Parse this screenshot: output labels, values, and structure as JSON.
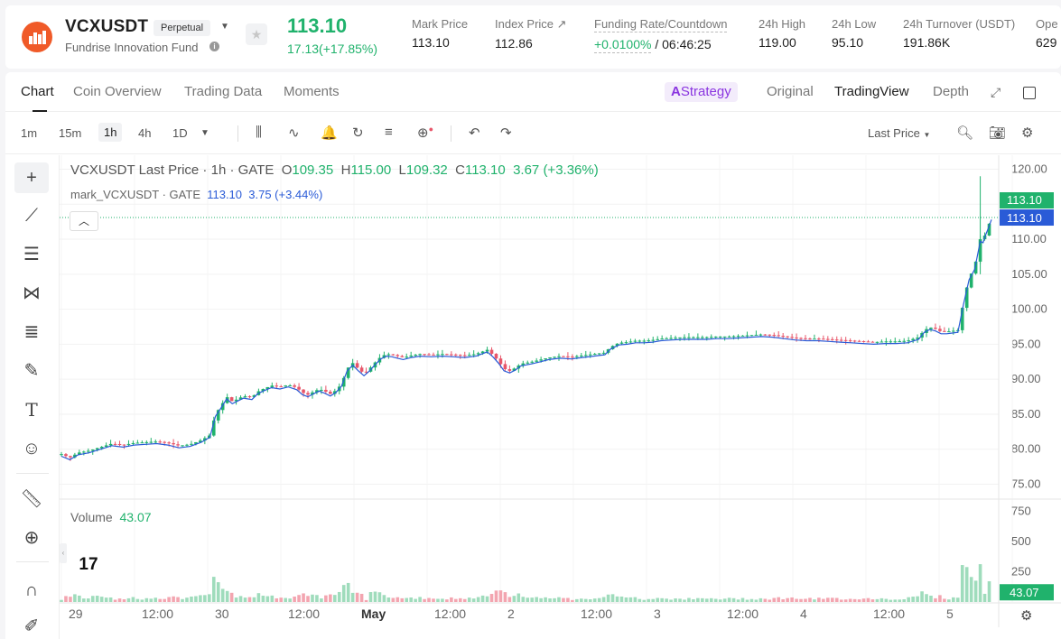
{
  "header": {
    "pair": "VCXUSDT",
    "contract_type": "Perpetual",
    "fund_name": "Fundrise Innovation Fund",
    "last_price": "113.10",
    "change": "17.13(+17.85%)",
    "stats": [
      {
        "label": "Mark Price",
        "value": "113.10"
      },
      {
        "label": "Index Price ↗",
        "value": "112.86"
      },
      {
        "label": "Funding Rate/Countdown",
        "value_green": "+0.0100%",
        "value": " / 06:46:25"
      },
      {
        "label": "24h High",
        "value": "119.00"
      },
      {
        "label": "24h Low",
        "value": "95.10"
      },
      {
        "label": "24h Turnover (USDT)",
        "value": "191.86K"
      },
      {
        "label": "Ope",
        "value": "629"
      }
    ],
    "colors": {
      "up": "#20b26c",
      "down": "#e8566a",
      "brand": "#f05a28"
    }
  },
  "tabs": [
    "Chart",
    "Coin Overview",
    "Trading Data",
    "Moments"
  ],
  "strategy_label": "Strategy",
  "views": [
    "Original",
    "TradingView",
    "Depth"
  ],
  "intervals": [
    "1m",
    "15m",
    "1h",
    "4h",
    "1D"
  ],
  "selected_interval": "1h",
  "price_source": "Last Price",
  "legend": {
    "title": "VCXUSDT Last Price · 1h · GATE",
    "o_label": "O",
    "o": "109.35",
    "h_label": "H",
    "h": "115.00",
    "l_label": "L",
    "l": "109.32",
    "c_label": "C",
    "c": "113.10",
    "chg": "3.67 (+3.36%)",
    "mark_title": "mark_VCXUSDT · GATE",
    "mark_value": "113.10",
    "mark_chg": "3.75 (+3.44%)"
  },
  "volume_legend": {
    "label": "Volume",
    "value": "43.07"
  },
  "chart_data": {
    "type": "candlestick",
    "price_axis": {
      "ticks": [
        "120.00",
        "115.00",
        "110.00",
        "105.00",
        "100.00",
        "95.00",
        "90.00",
        "85.00",
        "80.00",
        "75.00"
      ],
      "min": 73,
      "max": 122
    },
    "volume_axis": {
      "ticks": [
        "750",
        "500",
        "250"
      ],
      "max": 800
    },
    "time_labels": [
      "29",
      "12:00",
      "30",
      "12:00",
      "May",
      "12:00",
      "2",
      "12:00",
      "3",
      "12:00",
      "4",
      "12:00",
      "5"
    ],
    "last_price_tag": "113.10",
    "mark_price_tag": "113.10",
    "volume_tag": "43.07",
    "price_path": [
      [
        0,
        79.3
      ],
      [
        6,
        78.8
      ],
      [
        12,
        79.5
      ],
      [
        20,
        79.8
      ],
      [
        28,
        80.3
      ],
      [
        36,
        80.8
      ],
      [
        44,
        80.6
      ],
      [
        52,
        80.9
      ],
      [
        60,
        81
      ],
      [
        68,
        81.1
      ],
      [
        76,
        80.9
      ],
      [
        84,
        80.5
      ],
      [
        92,
        80.7
      ],
      [
        100,
        81.3
      ],
      [
        106,
        82
      ],
      [
        110,
        85
      ],
      [
        114,
        86.2
      ],
      [
        118,
        87.5
      ],
      [
        122,
        86.8
      ],
      [
        126,
        87.2
      ],
      [
        130,
        87.6
      ],
      [
        136,
        87.4
      ],
      [
        140,
        88.2
      ],
      [
        144,
        88.6
      ],
      [
        150,
        89.1
      ],
      [
        156,
        88.9
      ],
      [
        162,
        89.2
      ],
      [
        168,
        88.8
      ],
      [
        172,
        88.1
      ],
      [
        176,
        87.8
      ],
      [
        180,
        88.2
      ],
      [
        184,
        88.6
      ],
      [
        188,
        88.3
      ],
      [
        192,
        87.9
      ],
      [
        196,
        88.4
      ],
      [
        200,
        89.3
      ],
      [
        204,
        91.5
      ],
      [
        208,
        92.3
      ],
      [
        212,
        91.5
      ],
      [
        216,
        90.8
      ],
      [
        220,
        91.5
      ],
      [
        224,
        92.4
      ],
      [
        228,
        93.2
      ],
      [
        232,
        93.6
      ],
      [
        236,
        93.5
      ],
      [
        240,
        93.3
      ],
      [
        244,
        93.1
      ],
      [
        250,
        93.4
      ],
      [
        256,
        93.6
      ],
      [
        264,
        93.5
      ],
      [
        272,
        93.6
      ],
      [
        280,
        93.5
      ],
      [
        288,
        93.4
      ],
      [
        296,
        93.6
      ],
      [
        304,
        94.2
      ],
      [
        308,
        93.5
      ],
      [
        312,
        92.6
      ],
      [
        316,
        91.5
      ],
      [
        320,
        91.2
      ],
      [
        324,
        91.6
      ],
      [
        328,
        92.2
      ],
      [
        336,
        92.5
      ],
      [
        342,
        92.8
      ],
      [
        348,
        93.1
      ],
      [
        356,
        93.3
      ],
      [
        364,
        93.2
      ],
      [
        372,
        93.4
      ],
      [
        380,
        93.6
      ],
      [
        388,
        93.8
      ],
      [
        392,
        94.6
      ],
      [
        398,
        95.2
      ],
      [
        404,
        95.3
      ],
      [
        410,
        95.5
      ],
      [
        416,
        95.5
      ],
      [
        422,
        95.6
      ],
      [
        428,
        95.8
      ],
      [
        436,
        95.9
      ],
      [
        444,
        96.0
      ],
      [
        452,
        96.0
      ],
      [
        460,
        96.0
      ],
      [
        468,
        96.1
      ],
      [
        476,
        96.1
      ],
      [
        484,
        96.2
      ],
      [
        492,
        96.3
      ],
      [
        500,
        96.4
      ],
      [
        508,
        96.3
      ],
      [
        516,
        96.1
      ],
      [
        524,
        95.9
      ],
      [
        532,
        95.8
      ],
      [
        540,
        95.8
      ],
      [
        548,
        95.7
      ],
      [
        556,
        95.6
      ],
      [
        564,
        95.5
      ],
      [
        572,
        95.4
      ],
      [
        580,
        95.3
      ],
      [
        588,
        95.4
      ],
      [
        596,
        95.4
      ],
      [
        604,
        95.5
      ],
      [
        612,
        96.0
      ],
      [
        616,
        97.0
      ],
      [
        620,
        97.4
      ],
      [
        624,
        97.2
      ],
      [
        628,
        96.8
      ],
      [
        632,
        96.8
      ],
      [
        636,
        96.9
      ],
      [
        640,
        97.0
      ],
      [
        644,
        101.0
      ],
      [
        648,
        104.5
      ],
      [
        652,
        106.0
      ],
      [
        654,
        108.0
      ],
      [
        656,
        110.0
      ],
      [
        658,
        109.8
      ],
      [
        660,
        111.0
      ],
      [
        662,
        112.0
      ],
      [
        664,
        113.1
      ]
    ],
    "note_path_domain": "x: 0-664 relative hourly index; y: price in USDT"
  },
  "left_tools": [
    "crosshair-icon",
    "trendline-icon",
    "horizontal-lines-icon",
    "pattern-icon",
    "fib-retracement-icon",
    "brush-icon",
    "text-icon",
    "emoji-icon",
    "ruler-icon",
    "zoom-in-icon",
    "magnet-icon",
    "lock-icon"
  ]
}
